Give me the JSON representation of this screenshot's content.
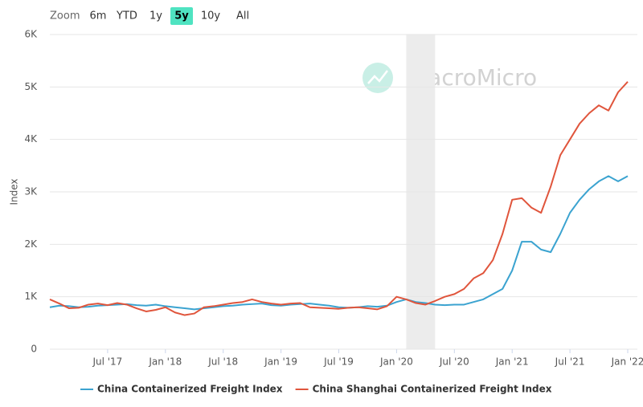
{
  "range_selector": {
    "label": "Zoom",
    "buttons": [
      "6m",
      "YTD",
      "1y",
      "5y",
      "10y",
      "All"
    ],
    "selected": 3
  },
  "watermark": "MacroMicro",
  "chart_data": {
    "type": "line",
    "y_label": "Index",
    "x": [
      "2017-01",
      "2017-02",
      "2017-03",
      "2017-04",
      "2017-05",
      "2017-06",
      "2017-07",
      "2017-08",
      "2017-09",
      "2017-10",
      "2017-11",
      "2017-12",
      "2018-01",
      "2018-02",
      "2018-03",
      "2018-04",
      "2018-05",
      "2018-06",
      "2018-07",
      "2018-08",
      "2018-09",
      "2018-10",
      "2018-11",
      "2018-12",
      "2019-01",
      "2019-02",
      "2019-03",
      "2019-04",
      "2019-05",
      "2019-06",
      "2019-07",
      "2019-08",
      "2019-09",
      "2019-10",
      "2019-11",
      "2019-12",
      "2020-01",
      "2020-02",
      "2020-03",
      "2020-04",
      "2020-05",
      "2020-06",
      "2020-07",
      "2020-08",
      "2020-09",
      "2020-10",
      "2020-11",
      "2020-12",
      "2021-01",
      "2021-02",
      "2021-03",
      "2021-04",
      "2021-05",
      "2021-06",
      "2021-07",
      "2021-08",
      "2021-09",
      "2021-10",
      "2021-11",
      "2021-12",
      "2022-01"
    ],
    "series": [
      {
        "name": "China Containerized Freight Index",
        "color": "#3ba3d0",
        "values": [
          800,
          830,
          820,
          800,
          810,
          830,
          840,
          850,
          860,
          840,
          830,
          850,
          820,
          800,
          780,
          760,
          780,
          800,
          820,
          830,
          850,
          860,
          870,
          840,
          830,
          850,
          860,
          870,
          850,
          830,
          800,
          790,
          800,
          820,
          810,
          830,
          900,
          950,
          900,
          880,
          850,
          840,
          850,
          850,
          900,
          950,
          1050,
          1150,
          1500,
          2050,
          2050,
          1900,
          1850,
          2200,
          2600,
          2850,
          3050,
          3200,
          3300,
          3200,
          3300
        ]
      },
      {
        "name": "China Shanghai Containerized Freight Index",
        "color": "#e0553c",
        "values": [
          950,
          870,
          780,
          790,
          850,
          870,
          840,
          880,
          850,
          780,
          720,
          750,
          800,
          700,
          650,
          680,
          800,
          820,
          850,
          880,
          900,
          950,
          900,
          870,
          850,
          870,
          880,
          800,
          790,
          780,
          770,
          790,
          800,
          780,
          760,
          820,
          1000,
          950,
          880,
          850,
          920,
          1000,
          1050,
          1150,
          1350,
          1450,
          1700,
          2200,
          2850,
          2880,
          2700,
          2600,
          3100,
          3700,
          4000,
          4300,
          4500,
          4650,
          4550,
          4900,
          5100
        ]
      }
    ],
    "shaded_range": [
      "2020-02",
      "2020-05"
    ],
    "xlim": [
      "2017-01",
      "2022-02"
    ],
    "xticks": [
      {
        "value": "2017-07",
        "label": "Jul '17"
      },
      {
        "value": "2018-01",
        "label": "Jan '18"
      },
      {
        "value": "2018-07",
        "label": "Jul '18"
      },
      {
        "value": "2019-01",
        "label": "Jan '19"
      },
      {
        "value": "2019-07",
        "label": "Jul '19"
      },
      {
        "value": "2020-01",
        "label": "Jan '20"
      },
      {
        "value": "2020-07",
        "label": "Jul '20"
      },
      {
        "value": "2021-01",
        "label": "Jan '21"
      },
      {
        "value": "2021-07",
        "label": "Jul '21"
      },
      {
        "value": "2022-01",
        "label": "Jan '22"
      }
    ],
    "ylim": [
      0,
      6000
    ],
    "yticks": [
      0,
      {
        "value": 1000,
        "label": "1K"
      },
      {
        "value": 2000,
        "label": "2K"
      },
      {
        "value": 3000,
        "label": "3K"
      },
      {
        "value": 4000,
        "label": "4K"
      },
      {
        "value": 5000,
        "label": "5K"
      },
      {
        "value": 6000,
        "label": "6K"
      }
    ],
    "grid": true,
    "legend": "bottom"
  }
}
